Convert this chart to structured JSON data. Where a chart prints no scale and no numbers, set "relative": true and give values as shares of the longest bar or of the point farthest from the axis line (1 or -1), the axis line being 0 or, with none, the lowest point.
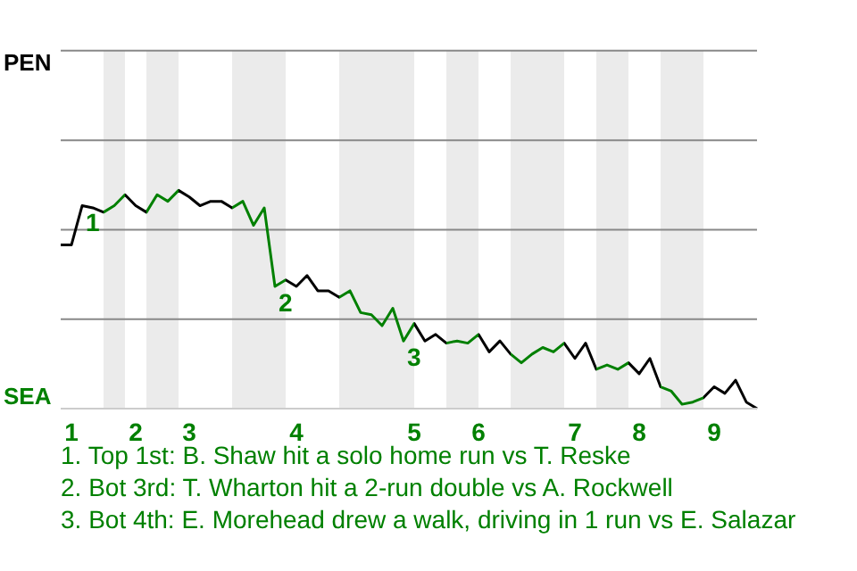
{
  "chart_data": {
    "type": "line",
    "relative": true,
    "categories": [
      null,
      "1",
      null,
      null,
      null,
      null,
      null,
      "2",
      null,
      null,
      null,
      null,
      "3",
      null,
      null,
      null,
      null,
      null,
      null,
      null,
      null,
      null,
      "4",
      null,
      null,
      null,
      null,
      null,
      null,
      null,
      null,
      null,
      null,
      "5",
      null,
      null,
      null,
      null,
      null,
      "6",
      null,
      null,
      null,
      null,
      null,
      null,
      null,
      null,
      "7",
      null,
      null,
      null,
      null,
      null,
      "8",
      null,
      null,
      null,
      null,
      null,
      null,
      "9",
      null,
      null,
      null,
      null
    ],
    "series": [
      {
        "values": [
          0.75,
          0.75,
          0.93,
          0.92,
          0.9,
          0.93,
          0.98,
          0.93,
          0.9,
          0.98,
          0.95,
          1,
          0.97,
          0.93,
          0.95,
          0.95,
          0.92,
          0.95,
          0.84,
          0.92,
          0.56,
          0.59,
          0.56,
          0.61,
          0.54,
          0.54,
          0.51,
          0.54,
          0.44,
          0.43,
          0.38,
          0.46,
          0.31,
          0.39,
          0.31,
          0.34,
          0.3,
          0.31,
          0.3,
          0.34,
          0.26,
          0.31,
          0.25,
          0.21,
          0.25,
          0.28,
          0.26,
          0.3,
          0.23,
          0.3,
          0.18,
          0.2,
          0.18,
          0.21,
          0.16,
          0.23,
          0.1,
          0.08,
          0.02,
          0.03,
          0.05,
          0.1,
          0.07,
          0.13,
          0.03,
          0
        ],
        "colors": [
          "#000000",
          "#000000",
          "#000000",
          "#000000",
          "#000000",
          "#008000",
          "#008000",
          "#000000",
          "#000000",
          "#008000",
          "#008000",
          "#008000",
          "#000000",
          "#000000",
          "#000000",
          "#000000",
          "#000000",
          "#008000",
          "#008000",
          "#008000",
          "#008000",
          "#008000",
          "#000000",
          "#000000",
          "#000000",
          "#000000",
          "#000000",
          "#008000",
          "#008000",
          "#008000",
          "#008000",
          "#008000",
          "#008000",
          "#008000",
          "#000000",
          "#000000",
          "#000000",
          "#008000",
          "#008000",
          "#008000",
          "#000000",
          "#000000",
          "#000000",
          "#008000",
          "#008000",
          "#008000",
          "#008000",
          "#008000",
          "#000000",
          "#000000",
          "#000000",
          "#008000",
          "#008000",
          "#008000",
          "#000000",
          "#000000",
          "#000000",
          "#008000",
          "#008000",
          "#008000",
          "#008000",
          "#000000",
          "#000000",
          "#000000",
          "#000000",
          "#000000"
        ]
      }
    ],
    "line_style": "solid",
    "ref_lines": [
      {
        "axis": "y",
        "value": 0.41,
        "color": "#888888"
      },
      {
        "axis": "y",
        "value": 0.82,
        "color": "#888888"
      },
      {
        "axis": "y",
        "value": 1.23,
        "color": "#888888"
      },
      {
        "axis": "y",
        "value": 1.64,
        "color": "#888888"
      }
    ],
    "annotations": [
      "PEN",
      "SEA",
      {
        "text": "1",
        "y": 0.93
      },
      {
        "text": "2",
        "y": 0.56
      },
      {
        "text": "3",
        "y": 0.31
      },
      "1. Top 1st: B. Shaw hit a solo home run vs T. Reske",
      "2. Bot 3rd: T. Wharton hit a 2-run double vs A. Rockwell",
      "3. Bot 4th: E. Morehead drew a walk, driving in 1 run vs E. Salazar"
    ]
  }
}
